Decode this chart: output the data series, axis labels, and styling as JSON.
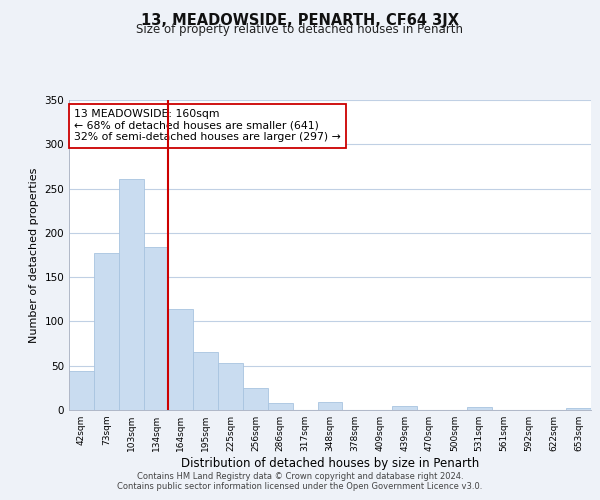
{
  "title": "13, MEADOWSIDE, PENARTH, CF64 3JX",
  "subtitle": "Size of property relative to detached houses in Penarth",
  "xlabel": "Distribution of detached houses by size in Penarth",
  "ylabel": "Number of detached properties",
  "footer_line1": "Contains HM Land Registry data © Crown copyright and database right 2024.",
  "footer_line2": "Contains public sector information licensed under the Open Government Licence v3.0.",
  "bar_labels": [
    "42sqm",
    "73sqm",
    "103sqm",
    "134sqm",
    "164sqm",
    "195sqm",
    "225sqm",
    "256sqm",
    "286sqm",
    "317sqm",
    "348sqm",
    "378sqm",
    "409sqm",
    "439sqm",
    "470sqm",
    "500sqm",
    "531sqm",
    "561sqm",
    "592sqm",
    "622sqm",
    "653sqm"
  ],
  "bar_values": [
    44,
    177,
    261,
    184,
    114,
    65,
    53,
    25,
    8,
    0,
    9,
    0,
    0,
    5,
    0,
    0,
    3,
    0,
    0,
    0,
    2
  ],
  "bar_color": "#c9dcf0",
  "bar_edge_color": "#a8c4e0",
  "vline_index": 3.5,
  "vline_color": "#cc0000",
  "annotation_text": "13 MEADOWSIDE: 160sqm\n← 68% of detached houses are smaller (641)\n32% of semi-detached houses are larger (297) →",
  "annotation_box_edgecolor": "#cc0000",
  "annotation_box_facecolor": "white",
  "ylim": [
    0,
    350
  ],
  "yticks": [
    0,
    50,
    100,
    150,
    200,
    250,
    300,
    350
  ],
  "bg_color": "#eef2f8",
  "plot_bg_color": "#ffffff",
  "grid_color": "#c0d0e4"
}
